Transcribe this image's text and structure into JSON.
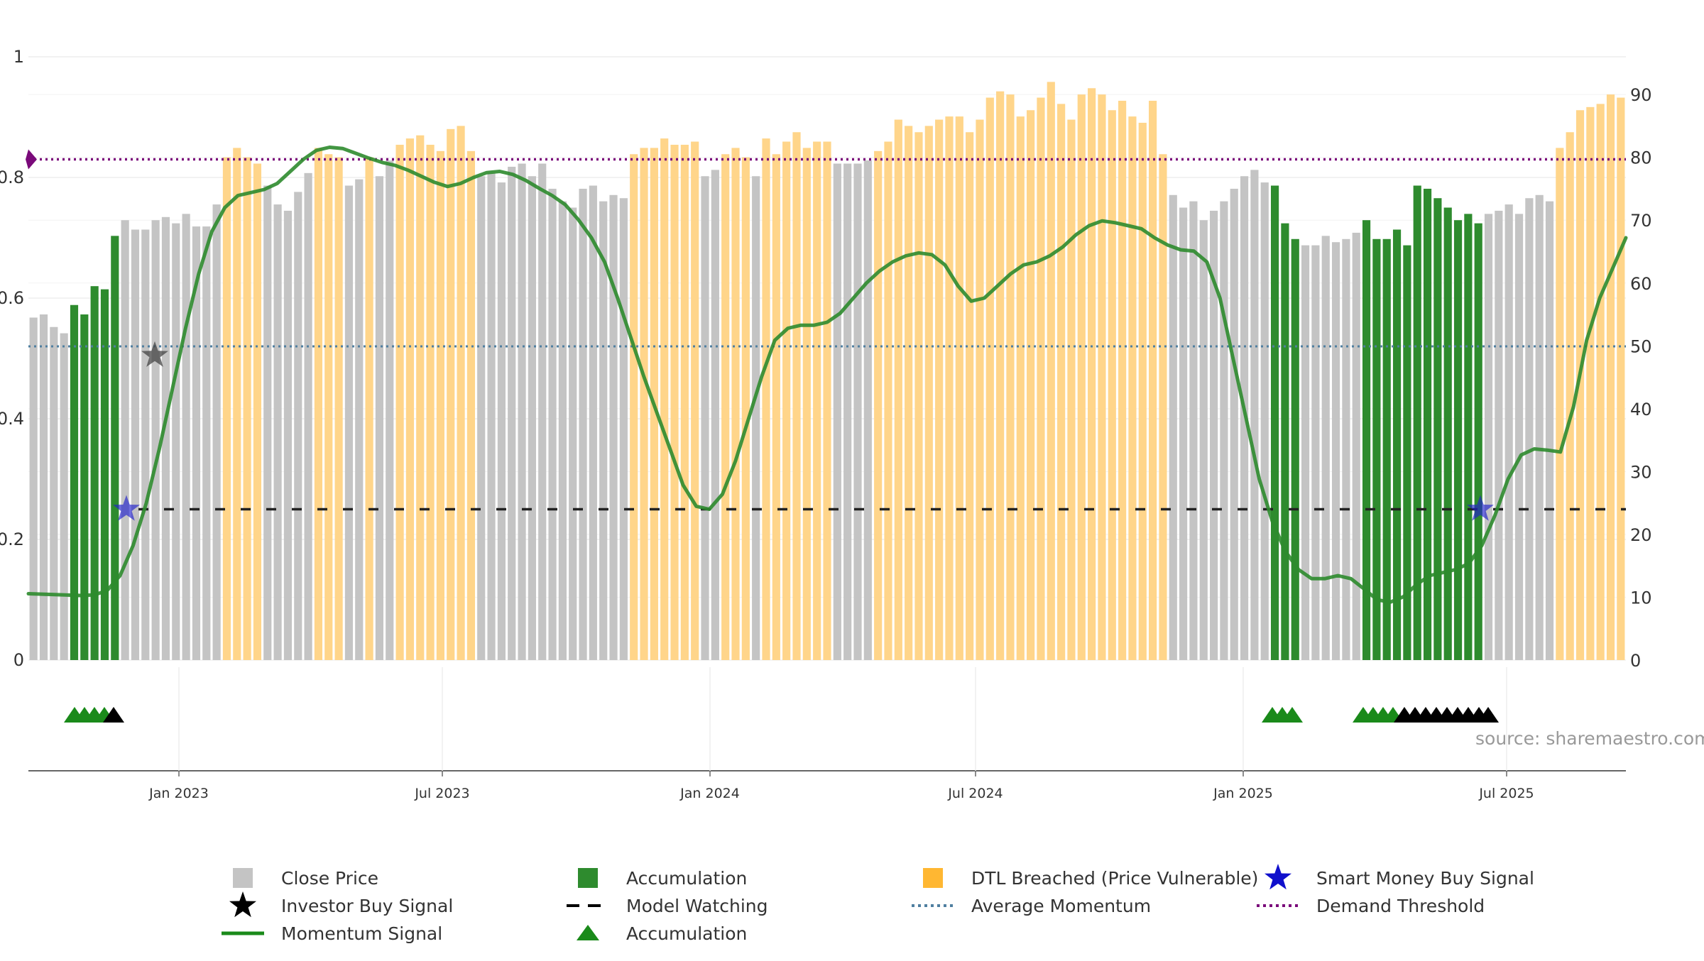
{
  "chart_data": {
    "type": "bar",
    "source": "source: sharemaestro.com",
    "left_axis": {
      "ticks": [
        "0",
        "0.2",
        "0.4",
        "0.6",
        "0.8",
        "1"
      ],
      "range": [
        0,
        1
      ]
    },
    "right_axis": {
      "ticks": [
        "0",
        "10",
        "20",
        "30",
        "40",
        "50",
        "60",
        "70",
        "80",
        "90"
      ],
      "range": [
        0,
        96
      ]
    },
    "x_axis": {
      "ticks": [
        "Jan 2023",
        "Jul 2023",
        "Jan 2024",
        "Jul 2024",
        "Jan 2025",
        "Jul 2025"
      ]
    },
    "colors": {
      "close": "#c4c4c4",
      "accumulation": "#2e8b2e",
      "dtl": "#ffd58a",
      "momentum": "#2e8b2e",
      "model_watching": "#222222",
      "average_momentum": "#4f7fa0",
      "demand_threshold": "#7a0a7a",
      "smart_money": "#2020cc",
      "investor_buy": "#444444"
    },
    "price_bars": [
      {
        "v": 54.5,
        "c": "close"
      },
      {
        "v": 55,
        "c": "close"
      },
      {
        "v": 53,
        "c": "close"
      },
      {
        "v": 52,
        "c": "close"
      },
      {
        "v": 56.5,
        "c": "acc"
      },
      {
        "v": 55,
        "c": "acc"
      },
      {
        "v": 59.5,
        "c": "acc"
      },
      {
        "v": 59,
        "c": "acc"
      },
      {
        "v": 67.5,
        "c": "acc"
      },
      {
        "v": 70,
        "c": "close"
      },
      {
        "v": 68.5,
        "c": "close"
      },
      {
        "v": 68.5,
        "c": "close"
      },
      {
        "v": 70,
        "c": "close"
      },
      {
        "v": 70.5,
        "c": "close"
      },
      {
        "v": 69.5,
        "c": "close"
      },
      {
        "v": 71,
        "c": "close"
      },
      {
        "v": 69,
        "c": "close"
      },
      {
        "v": 69,
        "c": "close"
      },
      {
        "v": 72.5,
        "c": "close"
      },
      {
        "v": 80,
        "c": "dtl"
      },
      {
        "v": 81.5,
        "c": "dtl"
      },
      {
        "v": 80,
        "c": "dtl"
      },
      {
        "v": 79,
        "c": "dtl"
      },
      {
        "v": 75.5,
        "c": "close"
      },
      {
        "v": 72.5,
        "c": "close"
      },
      {
        "v": 71.5,
        "c": "close"
      },
      {
        "v": 74.5,
        "c": "close"
      },
      {
        "v": 77.5,
        "c": "close"
      },
      {
        "v": 81.5,
        "c": "dtl"
      },
      {
        "v": 80.5,
        "c": "dtl"
      },
      {
        "v": 80,
        "c": "dtl"
      },
      {
        "v": 75.5,
        "c": "close"
      },
      {
        "v": 76.5,
        "c": "close"
      },
      {
        "v": 80,
        "c": "dtl"
      },
      {
        "v": 77,
        "c": "close"
      },
      {
        "v": 79.5,
        "c": "close"
      },
      {
        "v": 82,
        "c": "dtl"
      },
      {
        "v": 83,
        "c": "dtl"
      },
      {
        "v": 83.5,
        "c": "dtl"
      },
      {
        "v": 82,
        "c": "dtl"
      },
      {
        "v": 81,
        "c": "dtl"
      },
      {
        "v": 84.5,
        "c": "dtl"
      },
      {
        "v": 85,
        "c": "dtl"
      },
      {
        "v": 81,
        "c": "dtl"
      },
      {
        "v": 77,
        "c": "close"
      },
      {
        "v": 77.5,
        "c": "close"
      },
      {
        "v": 76,
        "c": "close"
      },
      {
        "v": 78.5,
        "c": "close"
      },
      {
        "v": 79,
        "c": "close"
      },
      {
        "v": 77,
        "c": "close"
      },
      {
        "v": 79,
        "c": "close"
      },
      {
        "v": 75,
        "c": "close"
      },
      {
        "v": 73,
        "c": "close"
      },
      {
        "v": 72,
        "c": "close"
      },
      {
        "v": 75,
        "c": "close"
      },
      {
        "v": 75.5,
        "c": "close"
      },
      {
        "v": 73,
        "c": "close"
      },
      {
        "v": 74,
        "c": "close"
      },
      {
        "v": 73.5,
        "c": "close"
      },
      {
        "v": 80.5,
        "c": "dtl"
      },
      {
        "v": 81.5,
        "c": "dtl"
      },
      {
        "v": 81.5,
        "c": "dtl"
      },
      {
        "v": 83,
        "c": "dtl"
      },
      {
        "v": 82,
        "c": "dtl"
      },
      {
        "v": 82,
        "c": "dtl"
      },
      {
        "v": 82.5,
        "c": "dtl"
      },
      {
        "v": 77,
        "c": "close"
      },
      {
        "v": 78,
        "c": "close"
      },
      {
        "v": 80.5,
        "c": "dtl"
      },
      {
        "v": 81.5,
        "c": "dtl"
      },
      {
        "v": 80,
        "c": "dtl"
      },
      {
        "v": 77,
        "c": "close"
      },
      {
        "v": 83,
        "c": "dtl"
      },
      {
        "v": 80.5,
        "c": "dtl"
      },
      {
        "v": 82.5,
        "c": "dtl"
      },
      {
        "v": 84,
        "c": "dtl"
      },
      {
        "v": 81.5,
        "c": "dtl"
      },
      {
        "v": 82.5,
        "c": "dtl"
      },
      {
        "v": 82.5,
        "c": "dtl"
      },
      {
        "v": 79,
        "c": "close"
      },
      {
        "v": 79,
        "c": "close"
      },
      {
        "v": 79,
        "c": "close"
      },
      {
        "v": 79.5,
        "c": "close"
      },
      {
        "v": 81,
        "c": "dtl"
      },
      {
        "v": 82.5,
        "c": "dtl"
      },
      {
        "v": 86,
        "c": "dtl"
      },
      {
        "v": 85,
        "c": "dtl"
      },
      {
        "v": 84,
        "c": "dtl"
      },
      {
        "v": 85,
        "c": "dtl"
      },
      {
        "v": 86,
        "c": "dtl"
      },
      {
        "v": 86.5,
        "c": "dtl"
      },
      {
        "v": 86.5,
        "c": "dtl"
      },
      {
        "v": 84,
        "c": "dtl"
      },
      {
        "v": 86,
        "c": "dtl"
      },
      {
        "v": 89.5,
        "c": "dtl"
      },
      {
        "v": 90.5,
        "c": "dtl"
      },
      {
        "v": 90,
        "c": "dtl"
      },
      {
        "v": 86.5,
        "c": "dtl"
      },
      {
        "v": 87.5,
        "c": "dtl"
      },
      {
        "v": 89.5,
        "c": "dtl"
      },
      {
        "v": 92,
        "c": "dtl"
      },
      {
        "v": 88.5,
        "c": "dtl"
      },
      {
        "v": 86,
        "c": "dtl"
      },
      {
        "v": 90,
        "c": "dtl"
      },
      {
        "v": 91,
        "c": "dtl"
      },
      {
        "v": 90,
        "c": "dtl"
      },
      {
        "v": 87.5,
        "c": "dtl"
      },
      {
        "v": 89,
        "c": "dtl"
      },
      {
        "v": 86.5,
        "c": "dtl"
      },
      {
        "v": 85.5,
        "c": "dtl"
      },
      {
        "v": 89,
        "c": "dtl"
      },
      {
        "v": 80.5,
        "c": "dtl"
      },
      {
        "v": 74,
        "c": "close"
      },
      {
        "v": 72,
        "c": "close"
      },
      {
        "v": 73,
        "c": "close"
      },
      {
        "v": 70,
        "c": "close"
      },
      {
        "v": 71.5,
        "c": "close"
      },
      {
        "v": 73,
        "c": "close"
      },
      {
        "v": 75,
        "c": "close"
      },
      {
        "v": 77,
        "c": "close"
      },
      {
        "v": 78,
        "c": "close"
      },
      {
        "v": 76,
        "c": "close"
      },
      {
        "v": 75.5,
        "c": "acc"
      },
      {
        "v": 69.5,
        "c": "acc"
      },
      {
        "v": 67,
        "c": "acc"
      },
      {
        "v": 66,
        "c": "close"
      },
      {
        "v": 66,
        "c": "close"
      },
      {
        "v": 67.5,
        "c": "close"
      },
      {
        "v": 66.5,
        "c": "close"
      },
      {
        "v": 67,
        "c": "close"
      },
      {
        "v": 68,
        "c": "close"
      },
      {
        "v": 70,
        "c": "acc"
      },
      {
        "v": 67,
        "c": "acc"
      },
      {
        "v": 67,
        "c": "acc"
      },
      {
        "v": 68.5,
        "c": "acc"
      },
      {
        "v": 66,
        "c": "acc"
      },
      {
        "v": 75.5,
        "c": "acc"
      },
      {
        "v": 75,
        "c": "acc"
      },
      {
        "v": 73.5,
        "c": "acc"
      },
      {
        "v": 72,
        "c": "acc"
      },
      {
        "v": 70,
        "c": "acc"
      },
      {
        "v": 71,
        "c": "acc"
      },
      {
        "v": 69.5,
        "c": "acc"
      },
      {
        "v": 71,
        "c": "close"
      },
      {
        "v": 71.5,
        "c": "close"
      },
      {
        "v": 72.5,
        "c": "close"
      },
      {
        "v": 71,
        "c": "close"
      },
      {
        "v": 73.5,
        "c": "close"
      },
      {
        "v": 74,
        "c": "close"
      },
      {
        "v": 73,
        "c": "close"
      },
      {
        "v": 81.5,
        "c": "dtl"
      },
      {
        "v": 84,
        "c": "dtl"
      },
      {
        "v": 87.5,
        "c": "dtl"
      },
      {
        "v": 88,
        "c": "dtl"
      },
      {
        "v": 88.5,
        "c": "dtl"
      },
      {
        "v": 90,
        "c": "dtl"
      },
      {
        "v": 89.5,
        "c": "dtl"
      }
    ],
    "momentum": [
      [
        0,
        0.11
      ],
      [
        4,
        0.107
      ],
      [
        5,
        0.108
      ],
      [
        6,
        0.115
      ],
      [
        7,
        0.14
      ],
      [
        8,
        0.19
      ],
      [
        9,
        0.26
      ],
      [
        10,
        0.35
      ],
      [
        11,
        0.45
      ],
      [
        12,
        0.55
      ],
      [
        13,
        0.64
      ],
      [
        14,
        0.71
      ],
      [
        15,
        0.75
      ],
      [
        16,
        0.77
      ],
      [
        17,
        0.775
      ],
      [
        18,
        0.78
      ],
      [
        19,
        0.79
      ],
      [
        20,
        0.81
      ],
      [
        21,
        0.83
      ],
      [
        22,
        0.845
      ],
      [
        23,
        0.85
      ],
      [
        24,
        0.848
      ],
      [
        25,
        0.84
      ],
      [
        26,
        0.832
      ],
      [
        27,
        0.825
      ],
      [
        28,
        0.82
      ],
      [
        29,
        0.812
      ],
      [
        30,
        0.802
      ],
      [
        31,
        0.792
      ],
      [
        32,
        0.785
      ],
      [
        33,
        0.79
      ],
      [
        34,
        0.8
      ],
      [
        35,
        0.808
      ],
      [
        36,
        0.81
      ],
      [
        37,
        0.805
      ],
      [
        38,
        0.795
      ],
      [
        39,
        0.782
      ],
      [
        40,
        0.77
      ],
      [
        41,
        0.755
      ],
      [
        42,
        0.73
      ],
      [
        43,
        0.7
      ],
      [
        44,
        0.66
      ],
      [
        45,
        0.6
      ],
      [
        46,
        0.535
      ],
      [
        47,
        0.47
      ],
      [
        48,
        0.41
      ],
      [
        49,
        0.35
      ],
      [
        50,
        0.29
      ],
      [
        51,
        0.255
      ],
      [
        52,
        0.25
      ],
      [
        53,
        0.275
      ],
      [
        54,
        0.33
      ],
      [
        55,
        0.4
      ],
      [
        56,
        0.47
      ],
      [
        57,
        0.53
      ],
      [
        58,
        0.55
      ],
      [
        59,
        0.555
      ],
      [
        60,
        0.555
      ],
      [
        61,
        0.56
      ],
      [
        62,
        0.575
      ],
      [
        63,
        0.6
      ],
      [
        64,
        0.625
      ],
      [
        65,
        0.645
      ],
      [
        66,
        0.66
      ],
      [
        67,
        0.67
      ],
      [
        68,
        0.675
      ],
      [
        69,
        0.672
      ],
      [
        70,
        0.655
      ],
      [
        71,
        0.62
      ],
      [
        72,
        0.595
      ],
      [
        73,
        0.6
      ],
      [
        74,
        0.62
      ],
      [
        75,
        0.64
      ],
      [
        76,
        0.655
      ],
      [
        77,
        0.66
      ],
      [
        78,
        0.67
      ],
      [
        79,
        0.685
      ],
      [
        80,
        0.705
      ],
      [
        81,
        0.72
      ],
      [
        82,
        0.728
      ],
      [
        83,
        0.725
      ],
      [
        84,
        0.72
      ],
      [
        85,
        0.715
      ],
      [
        86,
        0.7
      ],
      [
        87,
        0.688
      ],
      [
        88,
        0.68
      ],
      [
        89,
        0.678
      ],
      [
        90,
        0.66
      ],
      [
        91,
        0.6
      ],
      [
        92,
        0.5
      ],
      [
        93,
        0.4
      ],
      [
        94,
        0.3
      ],
      [
        95,
        0.23
      ],
      [
        96,
        0.18
      ],
      [
        97,
        0.15
      ],
      [
        98,
        0.135
      ],
      [
        99,
        0.135
      ],
      [
        100,
        0.14
      ],
      [
        101,
        0.135
      ],
      [
        102,
        0.118
      ],
      [
        103,
        0.1
      ],
      [
        104,
        0.096
      ],
      [
        105,
        0.105
      ],
      [
        106,
        0.125
      ],
      [
        107,
        0.14
      ],
      [
        108,
        0.145
      ],
      [
        109,
        0.15
      ],
      [
        110,
        0.16
      ],
      [
        111,
        0.19
      ],
      [
        112,
        0.24
      ],
      [
        113,
        0.3
      ],
      [
        114,
        0.34
      ],
      [
        115,
        0.35
      ],
      [
        116,
        0.348
      ],
      [
        117,
        0.345
      ],
      [
        118,
        0.42
      ],
      [
        119,
        0.53
      ],
      [
        120,
        0.6
      ],
      [
        121,
        0.65
      ],
      [
        122,
        0.7
      ]
    ],
    "model_watching_level": 0.25,
    "average_momentum_level": 0.52,
    "demand_threshold_level": 0.83,
    "smart_money_signals": [
      [
        0.25,
        0.25
      ],
      [
        0.905,
        0.25
      ]
    ],
    "investor_buy_signals": [
      [
        0.079,
        0.505
      ]
    ],
    "accumulation_triangles": {
      "green": [
        0.028,
        0.034,
        0.04,
        0.046,
        0.052,
        0.758,
        0.764,
        0.77,
        0.815,
        0.821,
        0.827,
        0.833
      ],
      "black": [
        0.058,
        0.839,
        0.845,
        0.851,
        0.857,
        0.863,
        0.869,
        0.875,
        0.881,
        0.887
      ]
    },
    "legend": [
      {
        "label": "Close Price",
        "symbol": "square",
        "color": "#c4c4c4"
      },
      {
        "label": "Accumulation",
        "symbol": "square",
        "color": "#2e8b2e"
      },
      {
        "label": "DTL Breached (Price Vulnerable)",
        "symbol": "square",
        "color": "#ffb732"
      },
      {
        "label": "Smart Money Buy Signal",
        "symbol": "star",
        "color": "#1010cc"
      },
      {
        "label": "Investor Buy Signal",
        "symbol": "star",
        "color": "#000000"
      },
      {
        "label": "Model Watching",
        "symbol": "dash",
        "color": "#000000"
      },
      {
        "label": "Average Momentum",
        "symbol": "dot",
        "color": "#4f7fa0"
      },
      {
        "label": "Demand Threshold",
        "symbol": "dot",
        "color": "#7a0a7a"
      },
      {
        "label": "Momentum Signal",
        "symbol": "line",
        "color": "#1a8a1a"
      },
      {
        "label": "Accumulation",
        "symbol": "triangle",
        "color": "#1a8a1a"
      }
    ]
  }
}
